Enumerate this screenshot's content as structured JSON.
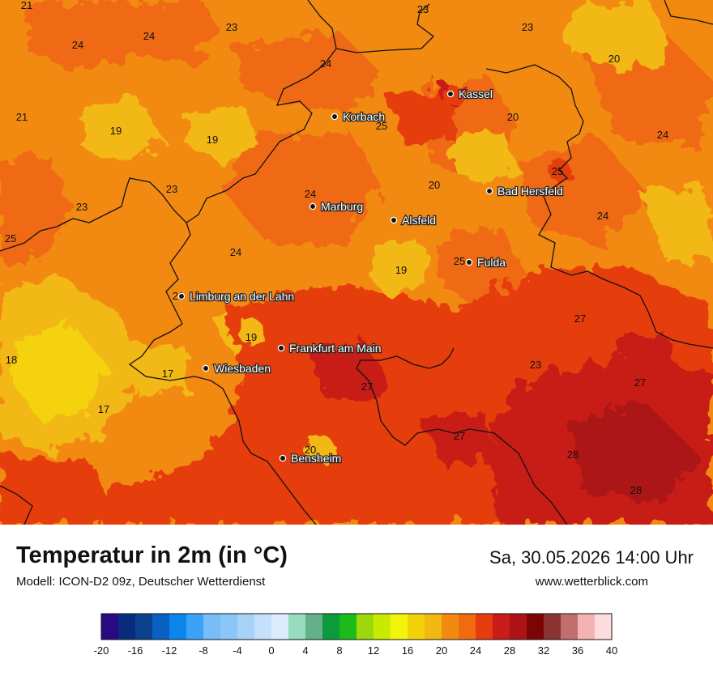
{
  "map": {
    "title": "Temperatur in 2m (in °C)",
    "model": "Modell: ICON-D2 09z, Deutscher Wetterdienst",
    "valid_time": "Sa, 30.05.2026 14:00 Uhr",
    "website": "www.wetterblick.com",
    "background_color": "#f28a12",
    "cities": [
      {
        "name": "Kassel"
      },
      {
        "name": "Korbach"
      },
      {
        "name": "Bad Hersfeld"
      },
      {
        "name": "Marburg"
      },
      {
        "name": "Alsfeld"
      },
      {
        "name": "Fulda"
      },
      {
        "name": "Limburg an der Lahn"
      },
      {
        "name": "Frankfurt am Main"
      },
      {
        "name": "Wiesbaden"
      },
      {
        "name": "Bensheim"
      }
    ],
    "values": [
      {
        "text": "21"
      },
      {
        "text": "24"
      },
      {
        "text": "24"
      },
      {
        "text": "23"
      },
      {
        "text": "23"
      },
      {
        "text": "23"
      },
      {
        "text": "20"
      },
      {
        "text": "24"
      },
      {
        "text": "21"
      },
      {
        "text": "19"
      },
      {
        "text": "19"
      },
      {
        "text": "25"
      },
      {
        "text": "20"
      },
      {
        "text": "24"
      },
      {
        "text": "25"
      },
      {
        "text": "20"
      },
      {
        "text": "23"
      },
      {
        "text": "23"
      },
      {
        "text": "24"
      },
      {
        "text": "24"
      },
      {
        "text": "25"
      },
      {
        "text": "24"
      },
      {
        "text": "19"
      },
      {
        "text": "25"
      },
      {
        "text": "21"
      },
      {
        "text": "27"
      },
      {
        "text": "19"
      },
      {
        "text": "18"
      },
      {
        "text": "23"
      },
      {
        "text": "17"
      },
      {
        "text": "27"
      },
      {
        "text": "27"
      },
      {
        "text": "17"
      },
      {
        "text": "27"
      },
      {
        "text": "20"
      },
      {
        "text": "28"
      },
      {
        "text": "28"
      }
    ],
    "legend": {
      "ticks": [
        "-20",
        "-16",
        "-12",
        "-8",
        "-4",
        "0",
        "4",
        "8",
        "12",
        "16",
        "20",
        "24",
        "28",
        "32",
        "36",
        "40"
      ],
      "colors": [
        "#2a0a82",
        "#0a2c7e",
        "#0c428c",
        "#0860c2",
        "#0a86ec",
        "#3ca2f8",
        "#78bcf8",
        "#8ac6f8",
        "#a8d2f8",
        "#c4e0fa",
        "#dcecfc",
        "#98dcc0",
        "#64b08a",
        "#0c9a3c",
        "#1cba1a",
        "#9cd80c",
        "#c8ea00",
        "#f4f40a",
        "#f4d20a",
        "#f2b812",
        "#f28a12",
        "#f06a12",
        "#e63c10",
        "#c81c18",
        "#ac1216",
        "#7c0404",
        "#8c3434",
        "#c06e6e",
        "#f4b2b2",
        "#fcdcdc"
      ]
    }
  }
}
